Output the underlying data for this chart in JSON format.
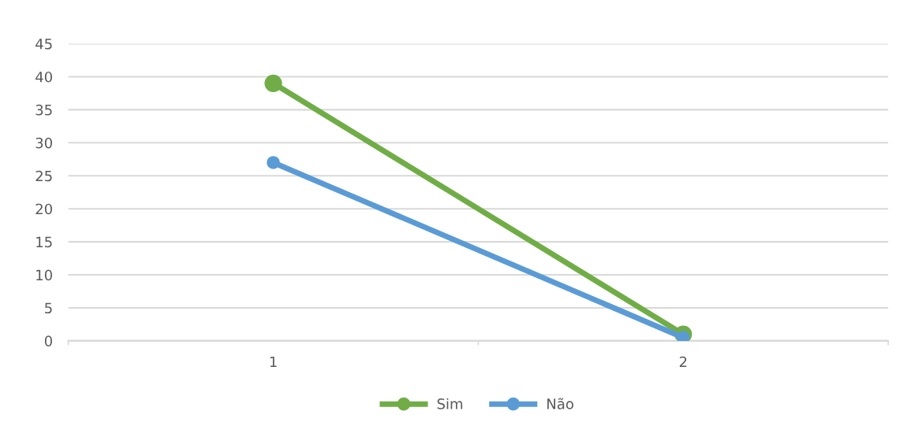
{
  "chart_data": {
    "type": "line",
    "categories": [
      "1",
      "2"
    ],
    "series": [
      {
        "name": "Sim",
        "color": "#70ad47",
        "values": [
          39,
          1
        ]
      },
      {
        "name": "Não",
        "color": "#5b9bd5",
        "values": [
          27,
          0.5
        ]
      }
    ],
    "ylim": [
      0,
      45
    ],
    "yticks": [
      0,
      5,
      10,
      15,
      20,
      25,
      30,
      35,
      40,
      45
    ],
    "grid": "y",
    "legend": "bottom",
    "marker": "circle",
    "line_style": "solid"
  }
}
